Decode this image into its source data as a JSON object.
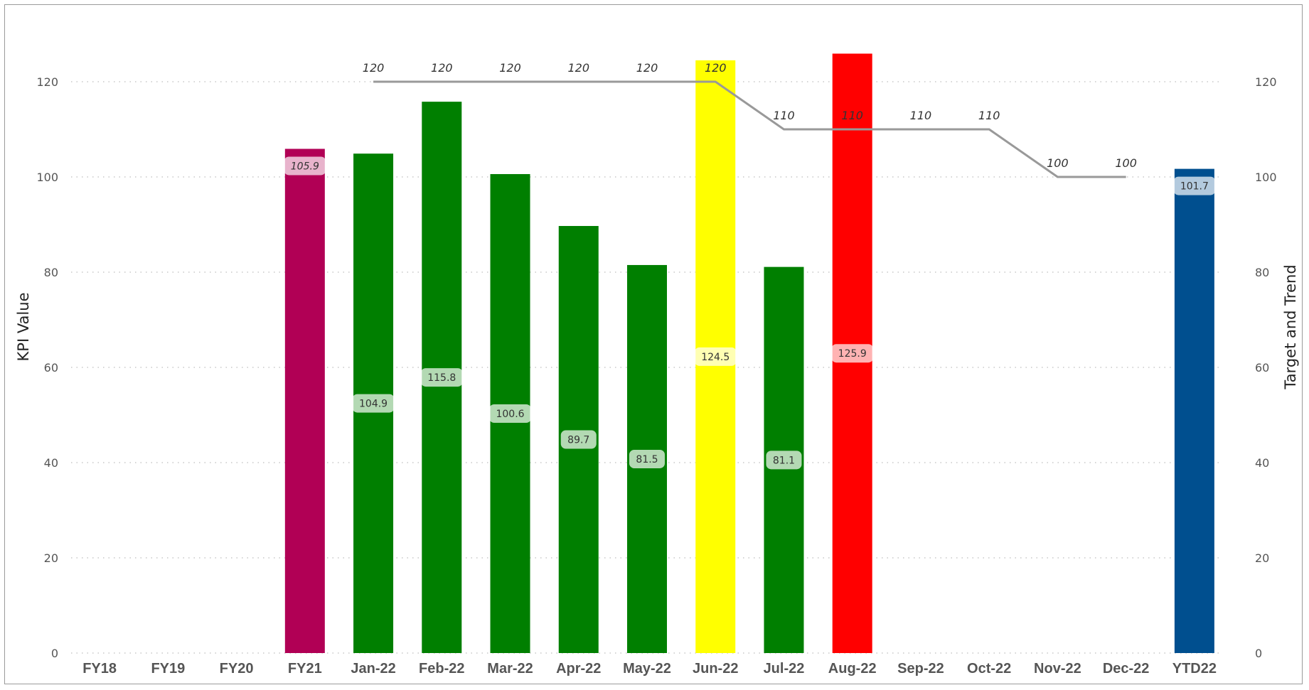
{
  "colors": {
    "previous_year": "#b10055",
    "on_target": "#007f00",
    "warning": "#ffff00",
    "off_target": "#ff0000",
    "ytd": "#004f8f",
    "target_line": "#999999",
    "gridline": "#c8c8c8"
  },
  "chart_data": {
    "type": "bar",
    "categories": [
      "FY18",
      "FY19",
      "FY20",
      "FY21",
      "Jan-22",
      "Feb-22",
      "Mar-22",
      "Apr-22",
      "May-22",
      "Jun-22",
      "Jul-22",
      "Aug-22",
      "Sep-22",
      "Oct-22",
      "Nov-22",
      "Dec-22",
      "YTD22"
    ],
    "series": [
      {
        "values": [
          null,
          null,
          null,
          105.9,
          104.9,
          115.8,
          100.6,
          89.7,
          81.5,
          124.5,
          81.1,
          125.9,
          null,
          null,
          null,
          null,
          101.7
        ],
        "colors": [
          "",
          "",
          "",
          "#b10055",
          "#007f00",
          "#007f00",
          "#007f00",
          "#007f00",
          "#007f00",
          "#ffff00",
          "#007f00",
          "#ff0000",
          "",
          "",
          "",
          "",
          "#004f8f"
        ],
        "data_labels": [
          "",
          "",
          "",
          "105.9",
          "104.9",
          "115.8",
          "100.6",
          "89.7",
          "81.5",
          "124.5",
          "81.1",
          "125.9",
          "",
          "",
          "",
          "",
          "101.7"
        ]
      },
      {
        "type": "line",
        "axis": "right",
        "values": [
          null,
          null,
          null,
          null,
          120,
          120,
          120,
          120,
          120,
          120,
          110,
          110,
          110,
          110,
          100,
          100,
          null
        ]
      }
    ],
    "ylabel": "KPI Value",
    "y2label": "Target and Trend",
    "ylim": [
      0,
      120
    ],
    "y2lim": [
      0,
      120
    ],
    "yticks": [
      "0",
      "20",
      "40",
      "60",
      "80",
      "100",
      "120"
    ],
    "y2ticks": [
      "0",
      "20",
      "40",
      "60",
      "80",
      "100",
      "120"
    ],
    "grid": "horizontal dotted",
    "legend": "none"
  }
}
